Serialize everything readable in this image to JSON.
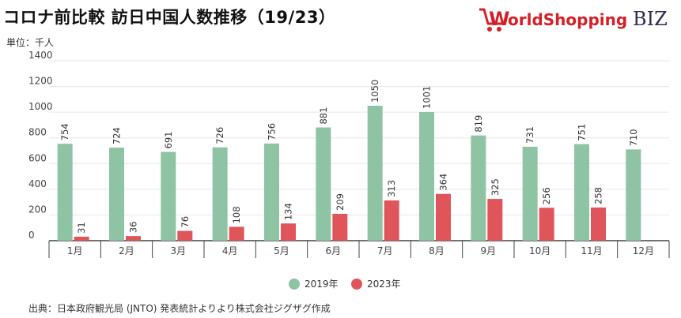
{
  "header": {
    "title": "コロナ前比較 訪日中国人数推移（19/23）",
    "unit": "単位：千人",
    "source": "出典：日本政府観光局 (JNTO) 発表統計よりより株式会社ジグザグ作成",
    "logo_text": "WorldShoppingBIZ"
  },
  "colors": {
    "series_2019": "#8ec3a4",
    "series_2023": "#e0555a",
    "logo_red": "#d42027",
    "logo_dark": "#2c2c4e"
  },
  "chart_data": {
    "type": "bar",
    "categories": [
      "1月",
      "2月",
      "3月",
      "4月",
      "5月",
      "6月",
      "7月",
      "8月",
      "9月",
      "10月",
      "11月",
      "12月"
    ],
    "series": [
      {
        "name": "2019年",
        "values": [
          754,
          724,
          691,
          726,
          756,
          881,
          1050,
          1001,
          819,
          731,
          751,
          710
        ]
      },
      {
        "name": "2023年",
        "values": [
          31,
          36,
          76,
          108,
          134,
          209,
          313,
          364,
          325,
          256,
          258,
          null
        ]
      }
    ],
    "ylim": [
      0,
      1400
    ],
    "yticks": [
      0,
      200,
      400,
      600,
      800,
      1000,
      1200,
      1400
    ],
    "grid": true,
    "legend": "bottom"
  }
}
